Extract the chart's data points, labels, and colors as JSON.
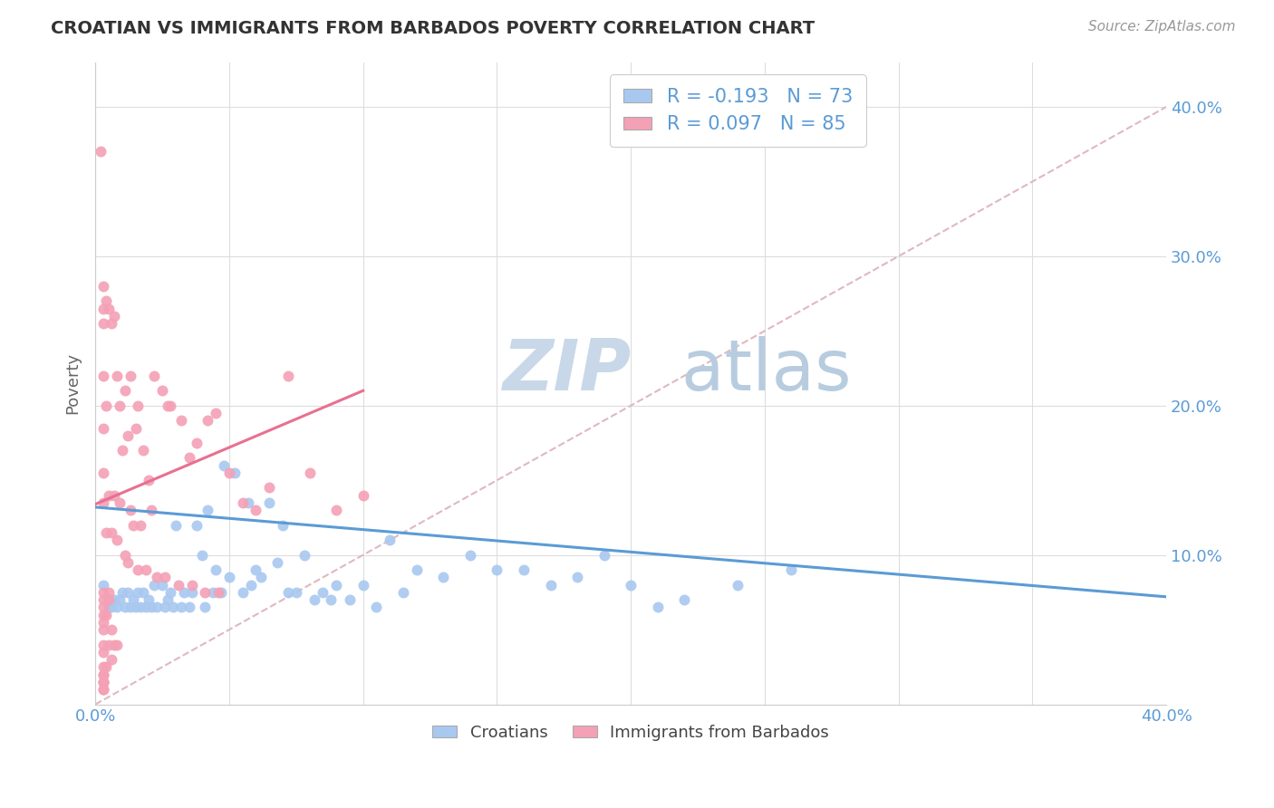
{
  "title": "CROATIAN VS IMMIGRANTS FROM BARBADOS POVERTY CORRELATION CHART",
  "source": "Source: ZipAtlas.com",
  "ylabel": "Poverty",
  "xlim": [
    0.0,
    0.4
  ],
  "ylim": [
    0.0,
    0.43
  ],
  "legend_r1": "-0.193",
  "legend_n1": "73",
  "legend_r2": "0.097",
  "legend_n2": "85",
  "croatian_color": "#a8c8f0",
  "barbados_color": "#f4a0b5",
  "trendline_croatian_color": "#5b9bd5",
  "trendline_barbados_color": "#e87090",
  "trendline_diag_color": "#e0b8c0",
  "watermark_zip_color": "#c8d8e8",
  "watermark_atlas_color": "#b8cce0",
  "croatians_x": [
    0.003,
    0.005,
    0.006,
    0.007,
    0.008,
    0.009,
    0.01,
    0.011,
    0.012,
    0.013,
    0.014,
    0.015,
    0.016,
    0.017,
    0.018,
    0.019,
    0.02,
    0.021,
    0.022,
    0.023,
    0.025,
    0.026,
    0.027,
    0.028,
    0.029,
    0.03,
    0.032,
    0.033,
    0.035,
    0.036,
    0.038,
    0.04,
    0.041,
    0.042,
    0.044,
    0.045,
    0.047,
    0.048,
    0.05,
    0.052,
    0.055,
    0.057,
    0.058,
    0.06,
    0.062,
    0.065,
    0.068,
    0.07,
    0.072,
    0.075,
    0.078,
    0.082,
    0.085,
    0.088,
    0.09,
    0.095,
    0.1,
    0.105,
    0.11,
    0.115,
    0.12,
    0.13,
    0.14,
    0.15,
    0.16,
    0.17,
    0.18,
    0.19,
    0.2,
    0.21,
    0.22,
    0.24,
    0.26
  ],
  "croatians_y": [
    0.08,
    0.065,
    0.065,
    0.07,
    0.065,
    0.07,
    0.075,
    0.065,
    0.075,
    0.065,
    0.07,
    0.065,
    0.075,
    0.065,
    0.075,
    0.065,
    0.07,
    0.065,
    0.08,
    0.065,
    0.08,
    0.065,
    0.07,
    0.075,
    0.065,
    0.12,
    0.065,
    0.075,
    0.065,
    0.075,
    0.12,
    0.1,
    0.065,
    0.13,
    0.075,
    0.09,
    0.075,
    0.16,
    0.085,
    0.155,
    0.075,
    0.135,
    0.08,
    0.09,
    0.085,
    0.135,
    0.095,
    0.12,
    0.075,
    0.075,
    0.1,
    0.07,
    0.075,
    0.07,
    0.08,
    0.07,
    0.08,
    0.065,
    0.11,
    0.075,
    0.09,
    0.085,
    0.1,
    0.09,
    0.09,
    0.08,
    0.085,
    0.1,
    0.08,
    0.065,
    0.07,
    0.08,
    0.09
  ],
  "barbados_x": [
    0.002,
    0.003,
    0.003,
    0.003,
    0.003,
    0.003,
    0.003,
    0.003,
    0.003,
    0.003,
    0.003,
    0.003,
    0.003,
    0.003,
    0.003,
    0.004,
    0.004,
    0.004,
    0.004,
    0.005,
    0.005,
    0.005,
    0.005,
    0.006,
    0.006,
    0.006,
    0.007,
    0.007,
    0.007,
    0.008,
    0.008,
    0.008,
    0.009,
    0.009,
    0.01,
    0.011,
    0.011,
    0.012,
    0.012,
    0.013,
    0.013,
    0.014,
    0.015,
    0.016,
    0.016,
    0.017,
    0.018,
    0.019,
    0.02,
    0.021,
    0.022,
    0.023,
    0.025,
    0.026,
    0.027,
    0.028,
    0.031,
    0.032,
    0.035,
    0.036,
    0.038,
    0.041,
    0.042,
    0.045,
    0.046,
    0.05,
    0.055,
    0.06,
    0.065,
    0.072,
    0.08,
    0.09,
    0.1,
    0.003,
    0.003,
    0.003,
    0.003,
    0.004,
    0.003,
    0.003,
    0.005,
    0.006,
    0.003,
    0.003,
    0.003
  ],
  "barbados_y": [
    0.37,
    0.28,
    0.265,
    0.255,
    0.22,
    0.185,
    0.155,
    0.135,
    0.075,
    0.07,
    0.065,
    0.06,
    0.055,
    0.05,
    0.04,
    0.27,
    0.2,
    0.115,
    0.06,
    0.265,
    0.14,
    0.075,
    0.07,
    0.255,
    0.115,
    0.05,
    0.26,
    0.14,
    0.04,
    0.22,
    0.11,
    0.04,
    0.2,
    0.135,
    0.17,
    0.21,
    0.1,
    0.18,
    0.095,
    0.22,
    0.13,
    0.12,
    0.185,
    0.2,
    0.09,
    0.12,
    0.17,
    0.09,
    0.15,
    0.13,
    0.22,
    0.085,
    0.21,
    0.085,
    0.2,
    0.2,
    0.08,
    0.19,
    0.165,
    0.08,
    0.175,
    0.075,
    0.19,
    0.195,
    0.075,
    0.155,
    0.135,
    0.13,
    0.145,
    0.22,
    0.155,
    0.13,
    0.14,
    0.035,
    0.025,
    0.02,
    0.015,
    0.025,
    0.02,
    0.015,
    0.04,
    0.03,
    0.01,
    0.01,
    0.015
  ],
  "trendline_croatian_x0": 0.0,
  "trendline_croatian_y0": 0.132,
  "trendline_croatian_x1": 0.4,
  "trendline_croatian_y1": 0.072,
  "trendline_barbados_x0": 0.0,
  "trendline_barbados_y0": 0.134,
  "trendline_barbados_x1": 0.1,
  "trendline_barbados_y1": 0.21
}
